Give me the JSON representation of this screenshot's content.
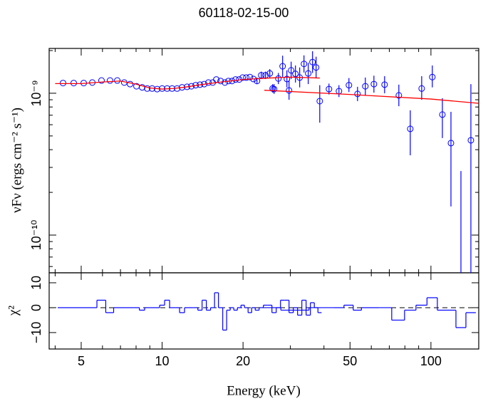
{
  "chart_data": [
    {
      "type": "scatter",
      "title": "60118-02-15-00",
      "ylabel": "νFν (ergs cm⁻² s⁻¹)",
      "log_x": true,
      "log_y": true,
      "xlim": [
        3.8,
        150.6
      ],
      "ylim": [
        5.42e-11,
        2.07e-09
      ],
      "yticks": [
        {
          "value": 1e-10,
          "label": "10⁻¹⁰"
        },
        {
          "value": 1e-09,
          "label": "10⁻⁹"
        }
      ],
      "yminor": [
        6e-11,
        7e-11,
        8e-11,
        9e-11,
        2e-10,
        3e-10,
        4e-10,
        5e-10,
        6e-10,
        7e-10,
        8e-10,
        9e-10,
        2e-09
      ],
      "series": [
        {
          "style": "points",
          "color": "#0000ff",
          "x": [
            4.28,
            4.69,
            5.11,
            5.5,
            5.95,
            6.4,
            6.81,
            7.23,
            7.6,
            8.03,
            8.43,
            8.8,
            9.18,
            9.58,
            10,
            10.44,
            10.89,
            11.37,
            11.86,
            12.38,
            12.85,
            13.33,
            13.83,
            14.34,
            14.87,
            15.43,
            15.91,
            16.5,
            17.12,
            17.65,
            18.2,
            18.76,
            19.35,
            19.94,
            20.56,
            21.21,
            21.86,
            22.54,
            23.38,
            24.24,
            25.15,
            26.09,
            27.07,
            28.07,
            29.12,
            30.2,
            31.33,
            32.49,
            33.71,
            34.96,
            36.27,
            37.4,
            38.58
          ],
          "values": [
            1.18e-09,
            1.18e-09,
            1.18e-09,
            1.19e-09,
            1.23e-09,
            1.23e-09,
            1.23e-09,
            1.19e-09,
            1.16e-09,
            1.12e-09,
            1.1e-09,
            1.08e-09,
            1.08e-09,
            1.07e-09,
            1.08e-09,
            1.08e-09,
            1.08e-09,
            1.08e-09,
            1.1e-09,
            1.11e-09,
            1.12e-09,
            1.14e-09,
            1.15e-09,
            1.16e-09,
            1.19e-09,
            1.19e-09,
            1.25e-09,
            1.22e-09,
            1.19e-09,
            1.22e-09,
            1.22e-09,
            1.25e-09,
            1.25e-09,
            1.29e-09,
            1.29e-09,
            1.3e-09,
            1.26e-09,
            1.22e-09,
            1.34e-09,
            1.34e-09,
            1.38e-09,
            1.07e-09,
            1.27e-09,
            1.55e-09,
            1.26e-09,
            1.45e-09,
            1.37e-09,
            1.29e-09,
            1.61e-09,
            1.38e-09,
            1.66e-09,
            1.52e-09,
            8.8e-10
          ],
          "lower": [
            null,
            null,
            null,
            null,
            null,
            null,
            null,
            null,
            null,
            null,
            null,
            null,
            null,
            null,
            null,
            null,
            null,
            null,
            null,
            null,
            null,
            null,
            null,
            null,
            null,
            null,
            null,
            null,
            null,
            null,
            null,
            null,
            null,
            null,
            null,
            null,
            null,
            1.17e-09,
            1.26e-09,
            1.26e-09,
            1.29e-09,
            9.9e-10,
            1.16e-09,
            1.3e-09,
            1.1e-09,
            1.26e-09,
            1.19e-09,
            1.1e-09,
            1.4e-09,
            1.16e-09,
            1.39e-09,
            1.28e-09,
            6.2e-10
          ],
          "upper": [
            null,
            null,
            null,
            null,
            null,
            null,
            null,
            null,
            null,
            null,
            null,
            null,
            null,
            null,
            null,
            null,
            null,
            null,
            null,
            null,
            null,
            null,
            null,
            null,
            null,
            null,
            null,
            null,
            null,
            null,
            null,
            null,
            null,
            null,
            null,
            null,
            null,
            1.28e-09,
            1.42e-09,
            1.42e-09,
            1.48e-09,
            1.16e-09,
            1.39e-09,
            1.84e-09,
            1.45e-09,
            1.67e-09,
            1.57e-09,
            1.52e-09,
            1.85e-09,
            1.64e-09,
            1.98e-09,
            1.81e-09,
            1.14e-09
          ]
        },
        {
          "style": "points",
          "color": "#0000ff",
          "x": [
            25.77,
            29.66,
            41.76,
            45.48,
            49.54,
            53.32,
            57.01,
            61.36,
            67.24,
            75.96,
            83.78,
            92.37,
            101.2,
            110.3,
            118.7,
            129.3,
            140.8
          ],
          "values": [
            1.08e-09,
            1.047e-09,
            1.07e-09,
            1.035e-09,
            1.14e-09,
            9.89e-10,
            1.12e-09,
            1.16e-09,
            1.15e-09,
            9.66e-10,
            5.61e-10,
            1.08e-09,
            1.3e-09,
            7.07e-10,
            4.45e-10,
            null,
            4.66e-10
          ],
          "lower": [
            1.01e-09,
            9e-10,
            9.8e-10,
            9.4e-10,
            1.02e-09,
            8.8e-10,
            9.7e-10,
            1.01e-09,
            1e-09,
            8.1e-10,
            3.65e-10,
            9e-10,
            1.1e-09,
            4.83e-10,
            1.59e-10,
            null,
            null
          ],
          "upper": [
            1.16e-09,
            1.23e-09,
            1.17e-09,
            1.14e-09,
            1.28e-09,
            1.11e-09,
            1.29e-09,
            1.33e-09,
            1.32e-09,
            1.15e-09,
            7.58e-10,
            1.32e-09,
            1.57e-09,
            9.22e-10,
            7.4e-10,
            2.83e-10,
            1.16e-09
          ]
        },
        {
          "style": "line",
          "color": "#ff0000",
          "x": [
            4.0,
            5,
            6,
            7,
            8,
            9,
            10,
            11,
            12,
            14,
            16,
            20,
            25,
            30,
            38.6
          ],
          "values": [
            1.17e-09,
            1.17e-09,
            1.2e-09,
            1.22e-09,
            1.16e-09,
            1.09e-09,
            1.07e-09,
            1.08e-09,
            1.1e-09,
            1.15e-09,
            1.19e-09,
            1.25e-09,
            1.28e-09,
            1.3e-09,
            1.28e-09
          ]
        },
        {
          "style": "line",
          "color": "#ff0000",
          "x": [
            24,
            50,
            100,
            150
          ],
          "values": [
            1.05e-09,
            9.8e-10,
            9.1e-10,
            8.5e-10
          ]
        }
      ]
    },
    {
      "type": "step",
      "xlabel": "Energy (keV)",
      "ylabel": "χ²",
      "log_x": true,
      "xlim": [
        3.8,
        150.6
      ],
      "ylim": [
        -16.6,
        14
      ],
      "xticks": [
        5,
        10,
        20,
        50,
        100
      ],
      "xminor": [
        4,
        6,
        7,
        8,
        9,
        30,
        40,
        60,
        70,
        80,
        90
      ],
      "yticks": [
        {
          "value": -10,
          "label": "−10"
        },
        0,
        10
      ],
      "reference_line": 0,
      "series": [
        {
          "color": "#0000ff",
          "x": [
            4.28,
            4.69,
            5.11,
            5.5,
            5.95,
            6.4,
            6.81,
            7.23,
            7.6,
            8.03,
            8.43,
            8.8,
            9.18,
            9.58,
            10,
            10.44,
            10.89,
            11.37,
            11.86,
            12.38,
            12.85,
            13.33,
            13.83,
            14.34,
            14.87,
            15.43,
            15.91,
            16.5,
            17.12,
            17.65,
            18.2,
            18.76,
            19.35,
            19.94,
            20.56,
            21.21,
            21.86,
            22.54,
            23.38,
            24.24,
            25.15,
            26.09,
            27.07,
            28.07,
            29.12,
            30.2,
            31.33,
            32.49,
            33.71,
            34.96,
            36.27,
            37.4,
            38.58
          ],
          "values": [
            0,
            0,
            0,
            0,
            3,
            -2,
            0,
            0,
            0,
            0,
            -1,
            0,
            0,
            0,
            1,
            3,
            0,
            0,
            -2,
            0,
            0,
            0,
            -1,
            3,
            -1,
            0,
            6,
            0,
            -9,
            -1,
            0,
            -1,
            0,
            1,
            0,
            -2,
            0,
            -1,
            0,
            1,
            1,
            -2,
            0,
            3,
            3,
            -2,
            0,
            -3,
            3,
            -3,
            2,
            0,
            -2
          ]
        },
        {
          "color": "#0000ff",
          "x": [
            25.77,
            29.66,
            41.76,
            45.48,
            49.54,
            53.32,
            57.01,
            61.36,
            67.24,
            75.96,
            83.78,
            92.37,
            101.2,
            110.3,
            118.7,
            129.3,
            140.8
          ],
          "values": [
            0,
            -1,
            0,
            0,
            1,
            -1,
            0,
            0,
            0,
            -5,
            -1,
            1,
            4,
            -1,
            -1,
            -8,
            -2
          ]
        }
      ]
    }
  ]
}
